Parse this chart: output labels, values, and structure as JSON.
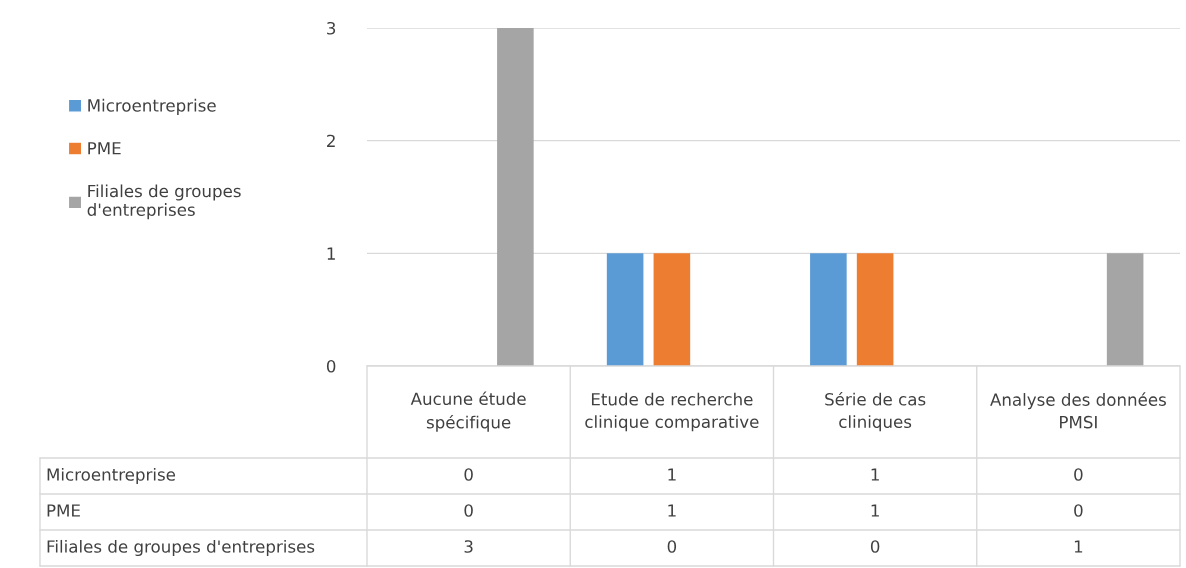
{
  "chart_data": {
    "type": "bar",
    "categories": [
      "Aucune étude spécifique",
      "Etude de recherche clinique comparative",
      "Série de cas cliniques",
      "Analyse des données PMSI"
    ],
    "series": [
      {
        "name": "Microentreprise",
        "color": "#5b9bd5",
        "values": [
          0,
          1,
          1,
          0
        ]
      },
      {
        "name": "PME",
        "color": "#ed7d31",
        "values": [
          0,
          1,
          1,
          0
        ]
      },
      {
        "name": "Filiales de groupes d'entreprises",
        "color": "#a5a5a5",
        "values": [
          3,
          0,
          0,
          1
        ]
      }
    ],
    "ylim": [
      0,
      3
    ],
    "yticks": [
      0,
      1,
      2,
      3
    ],
    "grid": "y",
    "legend": "left",
    "data_labels": true
  }
}
